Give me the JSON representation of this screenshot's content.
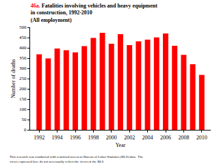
{
  "chart_data": {
    "type": "bar",
    "title": "46a. Fatalities involving vehicles and heavy equipment in construction, 1992-2010",
    "subtitle": "(All employment)",
    "x_label": "Year",
    "y_label": "Number of deaths",
    "x": [
      1992,
      1993,
      1994,
      1995,
      1996,
      1997,
      1998,
      1999,
      2000,
      2001,
      2002,
      2003,
      2004,
      2005,
      2006,
      2007,
      2008,
      2009,
      2010
    ],
    "values": [
      368,
      348,
      397,
      388,
      378,
      408,
      448,
      473,
      420,
      467,
      413,
      432,
      440,
      451,
      470,
      410,
      366,
      320,
      268
    ],
    "color": "#ff0000",
    "xlim": [
      1991,
      2011
    ],
    "xticks": [
      1992,
      1994,
      1996,
      1998,
      2000,
      2002,
      2004,
      2006,
      2008,
      2010
    ],
    "ylim": [
      0,
      500
    ],
    "yticks": [
      0,
      50,
      100,
      150,
      200,
      250,
      300,
      350,
      400,
      450,
      500
    ],
    "grid": false,
    "annotations": [
      "This research was conducted with restricted access to Bureau of Labor Statistics (BLS) data.  The views expressed here do not necessarily reflect the views of the BLS."
    ]
  }
}
